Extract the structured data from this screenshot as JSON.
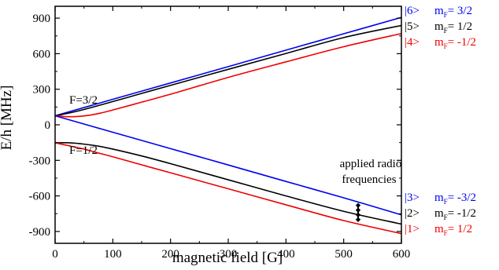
{
  "chart_data": {
    "type": "line",
    "xlabel": "magnetic field [G]",
    "ylabel": "E/h [MHz]",
    "xlim": [
      0,
      600
    ],
    "ylim": [
      -1000,
      1000
    ],
    "xticks": [
      0,
      100,
      200,
      300,
      400,
      500,
      600
    ],
    "yticks": [
      -900,
      -600,
      -300,
      0,
      300,
      600,
      900
    ],
    "grid": false,
    "annotations": {
      "f_upper": "F=3/2",
      "f_lower": "F=1/2",
      "radio_line1": "applied radio",
      "radio_line2": "frequencies",
      "radio_field": 525,
      "radio_points": [
        -680,
        -720,
        -760,
        -800
      ]
    },
    "colors": {
      "blue": "#0000ee",
      "black": "#000000",
      "red": "#ee0000"
    },
    "series": [
      {
        "state": "|6>",
        "mf": "3/2",
        "color": "#0000ee",
        "x": [
          0,
          100,
          200,
          300,
          400,
          500,
          600
        ],
        "y": [
          76,
          215,
          353,
          491,
          630,
          768,
          906
        ]
      },
      {
        "state": "|5>",
        "mf": "1/2",
        "color": "#000000",
        "x": [
          0,
          25,
          50,
          100,
          150,
          200,
          300,
          400,
          500,
          600
        ],
        "y": [
          76,
          100,
          129,
          196,
          265,
          333,
          468,
          602,
          736,
          838
        ]
      },
      {
        "state": "|4>",
        "mf": "-1/2",
        "color": "#ee0000",
        "x": [
          0,
          25,
          50,
          75,
          100,
          150,
          200,
          300,
          400,
          500,
          600
        ],
        "y": [
          76,
          68,
          75,
          95,
          125,
          191,
          258,
          400,
          531,
          659,
          770
        ]
      },
      {
        "state": "|3>",
        "mf": "-3/2",
        "color": "#0000ee",
        "x": [
          0,
          100,
          200,
          300,
          400,
          500,
          600
        ],
        "y": [
          76,
          -63,
          -201,
          -339,
          -478,
          -616,
          -760
        ]
      },
      {
        "state": "|2>",
        "mf": "-1/2",
        "color": "#000000",
        "x": [
          0,
          25,
          50,
          75,
          100,
          150,
          200,
          300,
          400,
          500,
          600
        ],
        "y": [
          -152,
          -152,
          -163,
          -180,
          -205,
          -263,
          -328,
          -464,
          -600,
          -730,
          -838
        ]
      },
      {
        "state": "|1>",
        "mf": "1/2",
        "color": "#ee0000",
        "x": [
          0,
          25,
          50,
          75,
          100,
          150,
          200,
          300,
          400,
          500,
          600
        ],
        "y": [
          -152,
          -178,
          -205,
          -238,
          -270,
          -338,
          -405,
          -540,
          -675,
          -808,
          -918
        ]
      }
    ]
  }
}
